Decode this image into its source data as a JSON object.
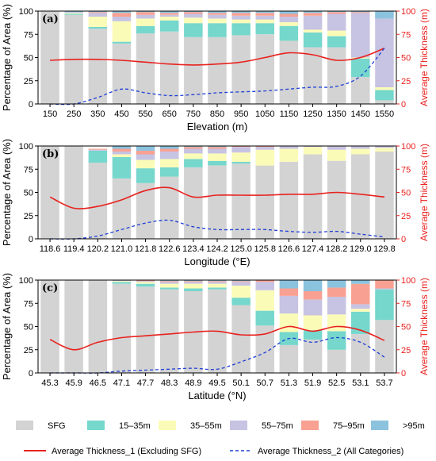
{
  "colors": {
    "SFG": "#d3d3d3",
    "15–35m": "#76d7cc",
    "35–55m": "#fbfbb8",
    "55–75m": "#c7c3e2",
    "75–95m": "#f8a193",
    "95plus": "#8bc2de",
    "thickness1": "#e8221f",
    "thickness2": "#1f3fd6"
  },
  "legend": {
    "cats": [
      "SFG",
      "15–35m",
      "35–55m",
      "55–75m",
      "75–95m",
      ">95m"
    ],
    "line1": "Average Thickness_1 (Excluding SFG)",
    "line2": "Average Thickness_2 (All Categories)"
  },
  "chart_data": [
    {
      "type": "bar",
      "panel": "(a)",
      "xlabel": "Elevation (m)",
      "ylabel": "Percentage of Area (%)",
      "ylabel_right": "Average Thickness (m)",
      "ylim": [
        0,
        100
      ],
      "ylim_right": [
        0,
        100
      ],
      "yticks": [
        0,
        25,
        50,
        75,
        100
      ],
      "yticks_right": [
        0,
        25,
        50,
        75,
        100
      ],
      "categories": [
        "150",
        "250",
        "350",
        "450",
        "550",
        "650",
        "750",
        "850",
        "950",
        "1050",
        "1150",
        "1250",
        "1350",
        "1450",
        "1550"
      ],
      "stacks": [
        [
          100,
          0,
          0,
          0,
          0,
          0
        ],
        [
          96,
          1,
          1,
          1,
          0,
          1
        ],
        [
          81,
          2,
          11,
          4,
          1,
          1
        ],
        [
          65,
          2,
          22,
          5,
          4,
          2
        ],
        [
          76,
          8,
          8,
          4,
          3,
          1
        ],
        [
          78,
          12,
          4,
          2,
          2,
          2
        ],
        [
          72,
          15,
          6,
          4,
          2,
          1
        ],
        [
          72,
          15,
          5,
          4,
          2,
          2
        ],
        [
          74,
          13,
          4,
          4,
          3,
          2
        ],
        [
          75,
          12,
          4,
          4,
          3,
          2
        ],
        [
          68,
          16,
          4,
          6,
          3,
          3
        ],
        [
          61,
          16,
          3,
          15,
          3,
          2
        ],
        [
          61,
          12,
          6,
          18,
          2,
          1
        ],
        [
          29,
          20,
          1,
          48,
          1,
          1
        ],
        [
          4,
          11,
          3,
          74,
          0,
          8
        ]
      ],
      "line1": [
        47,
        48,
        48,
        47,
        45,
        43,
        42,
        43,
        45,
        50,
        55,
        53,
        47,
        50,
        60
      ],
      "line2": [
        0,
        0,
        7,
        16,
        12,
        9,
        10,
        12,
        13,
        14,
        16,
        18,
        19,
        30,
        60
      ]
    },
    {
      "type": "bar",
      "panel": "(b)",
      "xlabel": "Longitude (°E)",
      "ylabel": "Percentage of Area (%)",
      "ylabel_right": "Average Thickness (m)",
      "ylim": [
        0,
        100
      ],
      "ylim_right": [
        0,
        100
      ],
      "yticks": [
        0,
        25,
        50,
        75,
        100
      ],
      "yticks_right": [
        0,
        25,
        50,
        75,
        100
      ],
      "categories": [
        "118.6",
        "119.4",
        "120.2",
        "121.0",
        "121.8",
        "122.6",
        "123.4",
        "124.2",
        "125.0",
        "125.8",
        "126.6",
        "127.4",
        "128.2",
        "129.0",
        "129.8"
      ],
      "stacks": [
        [
          100,
          0,
          0,
          0,
          0,
          0
        ],
        [
          100,
          0,
          0,
          0,
          0,
          0
        ],
        [
          82,
          13,
          0,
          1,
          1,
          0
        ],
        [
          65,
          23,
          3,
          3,
          3,
          3
        ],
        [
          60,
          16,
          9,
          6,
          4,
          5
        ],
        [
          67,
          10,
          9,
          8,
          3,
          3
        ],
        [
          77,
          9,
          6,
          5,
          2,
          1
        ],
        [
          79,
          5,
          8,
          5,
          2,
          1
        ],
        [
          81,
          2,
          10,
          6,
          1,
          0
        ],
        [
          79,
          0,
          17,
          3,
          1,
          0
        ],
        [
          83,
          0,
          14,
          3,
          0,
          0
        ],
        [
          91,
          0,
          8,
          1,
          0,
          0
        ],
        [
          84,
          0,
          12,
          4,
          0,
          0
        ],
        [
          91,
          0,
          6,
          3,
          0,
          0
        ],
        [
          94,
          0,
          4,
          2,
          0,
          0
        ]
      ],
      "line1": [
        45,
        33,
        35,
        42,
        52,
        55,
        45,
        47,
        47,
        47,
        48,
        48,
        50,
        48,
        45
      ],
      "line2": [
        0,
        0,
        3,
        10,
        17,
        20,
        13,
        10,
        10,
        10,
        8,
        7,
        8,
        5,
        2
      ]
    },
    {
      "type": "bar",
      "panel": "(c)",
      "xlabel": "Latitude (°N)",
      "ylabel": "Percentage of Area (%)",
      "ylabel_right": "Average Thickness (m)",
      "ylim": [
        0,
        100
      ],
      "ylim_right": [
        0,
        100
      ],
      "yticks": [
        0,
        25,
        50,
        75,
        100
      ],
      "yticks_right": [
        0,
        25,
        50,
        75,
        100
      ],
      "categories": [
        "45.3",
        "45.9",
        "46.5",
        "47.1",
        "47.7",
        "48.3",
        "48.9",
        "49.5",
        "50.1",
        "50.7",
        "51.3",
        "51.9",
        "52.5",
        "53.1",
        "53.7"
      ],
      "stacks": [
        [
          100,
          0,
          0,
          0,
          0,
          0
        ],
        [
          100,
          0,
          0,
          0,
          0,
          0
        ],
        [
          100,
          0,
          0,
          0,
          0,
          0
        ],
        [
          96,
          2,
          1,
          1,
          0,
          0
        ],
        [
          93,
          3,
          2,
          1,
          1,
          0
        ],
        [
          90,
          2,
          4,
          2,
          1,
          1
        ],
        [
          88,
          3,
          5,
          2,
          1,
          1
        ],
        [
          90,
          2,
          4,
          2,
          1,
          1
        ],
        [
          73,
          8,
          13,
          4,
          1,
          1
        ],
        [
          51,
          16,
          22,
          9,
          2,
          0
        ],
        [
          30,
          14,
          20,
          19,
          8,
          9
        ],
        [
          36,
          10,
          16,
          17,
          9,
          12
        ],
        [
          25,
          20,
          18,
          19,
          10,
          8
        ],
        [
          42,
          24,
          3,
          5,
          22,
          4
        ],
        [
          57,
          33,
          0,
          1,
          9,
          0
        ]
      ],
      "line1": [
        36,
        25,
        33,
        38,
        40,
        42,
        44,
        45,
        41,
        42,
        50,
        45,
        50,
        46,
        35
      ],
      "line2": [
        0,
        0,
        0,
        2,
        3,
        4,
        5,
        4,
        12,
        22,
        37,
        33,
        38,
        33,
        17
      ]
    }
  ]
}
